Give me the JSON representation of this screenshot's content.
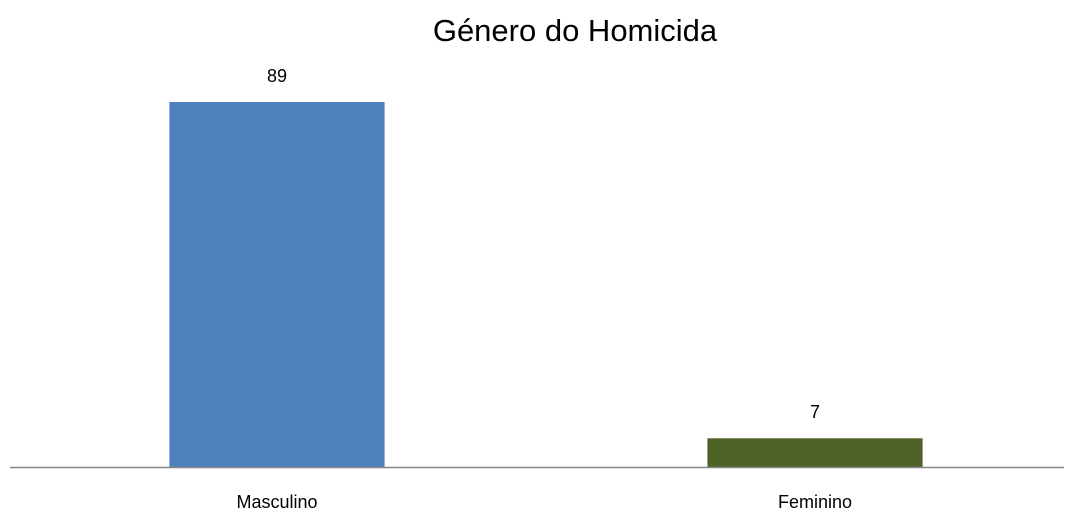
{
  "chart_data": {
    "type": "bar",
    "title": "Género do Homicida",
    "categories": [
      "Masculino",
      "Feminino"
    ],
    "values": [
      89,
      7
    ],
    "colors": [
      "#4f81bd",
      "#4f6228"
    ]
  }
}
